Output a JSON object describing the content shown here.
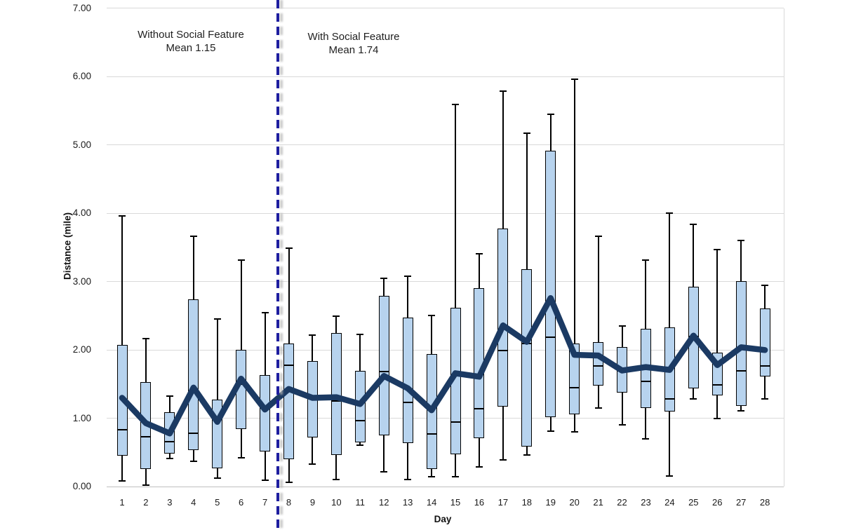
{
  "chart_data": {
    "type": "box",
    "title": "",
    "xlabel": "Day",
    "ylabel": "Distance (mile)",
    "ylim": [
      0,
      7
    ],
    "grid": "horizontal",
    "ytick_labels": [
      "0.00",
      "1.00",
      "2.00",
      "3.00",
      "4.00",
      "5.00",
      "6.00",
      "7.00"
    ],
    "categories": [
      "1",
      "2",
      "3",
      "4",
      "5",
      "6",
      "7",
      "8",
      "9",
      "10",
      "11",
      "12",
      "13",
      "14",
      "15",
      "16",
      "17",
      "18",
      "19",
      "20",
      "21",
      "22",
      "23",
      "24",
      "25",
      "26",
      "27",
      "28"
    ],
    "divider_after_day": 7,
    "annotations": [
      {
        "lines": [
          "Without Social Feature",
          "Mean 1.15"
        ]
      },
      {
        "lines": [
          "With Social Feature",
          "Mean 1.74"
        ]
      }
    ],
    "series": [
      {
        "name": "daily-distance-boxplot",
        "type": "box",
        "points": [
          {
            "day": 1,
            "low": 0.08,
            "q1": 0.45,
            "median": 0.83,
            "q3": 2.07,
            "high": 3.96
          },
          {
            "day": 2,
            "low": 0.02,
            "q1": 0.26,
            "median": 0.73,
            "q3": 1.53,
            "high": 2.17
          },
          {
            "day": 3,
            "low": 0.41,
            "q1": 0.48,
            "median": 0.66,
            "q3": 1.09,
            "high": 1.33
          },
          {
            "day": 4,
            "low": 0.37,
            "q1": 0.54,
            "median": 0.78,
            "q3": 2.74,
            "high": 3.66
          },
          {
            "day": 5,
            "low": 0.13,
            "q1": 0.27,
            "median": 1.0,
            "q3": 1.27,
            "high": 2.45
          },
          {
            "day": 6,
            "low": 0.42,
            "q1": 0.84,
            "median": 1.5,
            "q3": 2.0,
            "high": 3.32
          },
          {
            "day": 7,
            "low": 0.1,
            "q1": 0.52,
            "median": 1.15,
            "q3": 1.63,
            "high": 2.55
          },
          {
            "day": 8,
            "low": 0.06,
            "q1": 0.4,
            "median": 1.78,
            "q3": 2.09,
            "high": 3.49
          },
          {
            "day": 9,
            "low": 0.33,
            "q1": 0.72,
            "median": 1.3,
            "q3": 1.84,
            "high": 2.22
          },
          {
            "day": 10,
            "low": 0.11,
            "q1": 0.46,
            "median": 1.25,
            "q3": 2.25,
            "high": 2.5
          },
          {
            "day": 11,
            "low": 0.61,
            "q1": 0.65,
            "median": 0.97,
            "q3": 1.7,
            "high": 2.23
          },
          {
            "day": 12,
            "low": 0.22,
            "q1": 0.75,
            "median": 1.69,
            "q3": 2.79,
            "high": 3.05
          },
          {
            "day": 13,
            "low": 0.11,
            "q1": 0.64,
            "median": 1.23,
            "q3": 2.47,
            "high": 3.08
          },
          {
            "day": 14,
            "low": 0.15,
            "q1": 0.26,
            "median": 0.77,
            "q3": 1.94,
            "high": 2.51
          },
          {
            "day": 15,
            "low": 0.15,
            "q1": 0.47,
            "median": 0.95,
            "q3": 2.62,
            "high": 5.59
          },
          {
            "day": 16,
            "low": 0.29,
            "q1": 0.71,
            "median": 1.14,
            "q3": 2.91,
            "high": 3.41
          },
          {
            "day": 17,
            "low": 0.39,
            "q1": 1.17,
            "median": 1.99,
            "q3": 3.78,
            "high": 5.79
          },
          {
            "day": 18,
            "low": 0.46,
            "q1": 0.59,
            "median": 2.1,
            "q3": 3.18,
            "high": 5.17
          },
          {
            "day": 19,
            "low": 0.81,
            "q1": 1.02,
            "median": 2.19,
            "q3": 4.92,
            "high": 5.45
          },
          {
            "day": 20,
            "low": 0.8,
            "q1": 1.06,
            "median": 1.45,
            "q3": 2.09,
            "high": 5.96
          },
          {
            "day": 21,
            "low": 1.15,
            "q1": 1.48,
            "median": 1.77,
            "q3": 2.12,
            "high": 3.66
          },
          {
            "day": 22,
            "low": 0.91,
            "q1": 1.38,
            "median": 1.7,
            "q3": 2.04,
            "high": 2.35
          },
          {
            "day": 23,
            "low": 0.7,
            "q1": 1.15,
            "median": 1.54,
            "q3": 2.31,
            "high": 3.32
          },
          {
            "day": 24,
            "low": 0.16,
            "q1": 1.1,
            "median": 1.28,
            "q3": 2.33,
            "high": 4.0
          },
          {
            "day": 25,
            "low": 1.29,
            "q1": 1.44,
            "median": 2.2,
            "q3": 2.93,
            "high": 3.84
          },
          {
            "day": 26,
            "low": 1.0,
            "q1": 1.34,
            "median": 1.49,
            "q3": 1.96,
            "high": 3.47
          },
          {
            "day": 27,
            "low": 1.11,
            "q1": 1.18,
            "median": 1.7,
            "q3": 3.01,
            "high": 3.6
          },
          {
            "day": 28,
            "low": 1.29,
            "q1": 1.61,
            "median": 1.77,
            "q3": 2.61,
            "high": 2.95
          }
        ]
      },
      {
        "name": "mean-distance-line",
        "type": "line",
        "values": [
          1.3,
          0.93,
          0.78,
          1.45,
          0.95,
          1.58,
          1.13,
          1.43,
          1.3,
          1.31,
          1.21,
          1.62,
          1.44,
          1.12,
          1.66,
          1.61,
          2.36,
          2.12,
          2.76,
          1.93,
          1.92,
          1.7,
          1.75,
          1.71,
          2.21,
          1.78,
          2.04,
          2.0
        ]
      }
    ]
  },
  "colors": {
    "box_fill": "#b7d3ee",
    "box_border": "#000000",
    "whisker": "#000000",
    "mean_line": "#1b3a63",
    "divider": "#1e1ea0",
    "gridline": "#d9d9d9",
    "axis_line": "#bfbfbf",
    "text": "#1f1f1f"
  }
}
